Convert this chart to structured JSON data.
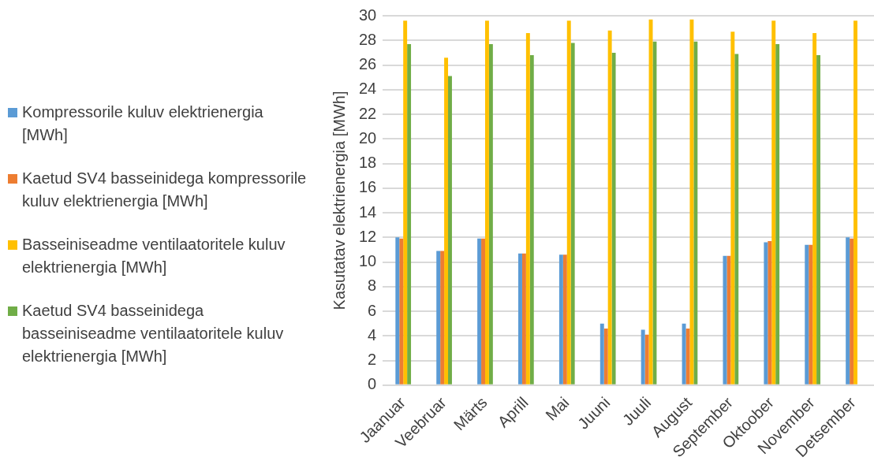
{
  "chart_data": {
    "type": "bar",
    "ylabel": "Kasutatav elektrienergia [MWh]",
    "categories": [
      "Jaanuar",
      "Veebruar",
      "Märts",
      "Aprill",
      "Mai",
      "Juuni",
      "Juuli",
      "August",
      "September",
      "Oktoober",
      "November",
      "Detsember"
    ],
    "series": [
      {
        "name": "Kompressorile kuluv elektrienergia [MWh]",
        "color": "#5b9bd5",
        "values": [
          12.0,
          10.9,
          11.9,
          10.7,
          10.6,
          5.0,
          4.5,
          5.0,
          10.5,
          11.6,
          11.4,
          12.0
        ]
      },
      {
        "name": "Kaetud SV4 basseinidega kompressorile kuluv elektrienergia [MWh]",
        "color": "#ed7d31",
        "values": [
          11.9,
          10.9,
          11.9,
          10.7,
          10.6,
          4.6,
          4.1,
          4.6,
          10.5,
          11.7,
          11.4,
          11.9
        ]
      },
      {
        "name": "Basseiniseadme ventilaatoritele kuluv elektrienergia [MWh]",
        "color": "#ffc000",
        "values": [
          29.6,
          26.6,
          29.6,
          28.6,
          29.6,
          28.8,
          29.7,
          29.7,
          28.7,
          29.6,
          28.6,
          29.6
        ]
      },
      {
        "name": "Kaetud SV4 basseinidega basseiniseadme ventilaatoritele kuluv elektrienergia [MWh]",
        "color": "#70ad47",
        "values": [
          27.7,
          25.1,
          27.7,
          26.8,
          27.8,
          27.0,
          27.9,
          27.9,
          26.9,
          27.7,
          26.8,
          null
        ]
      }
    ],
    "ylim": [
      0,
      30
    ],
    "yticks": [
      0,
      2,
      4,
      6,
      8,
      10,
      12,
      14,
      16,
      18,
      20,
      22,
      24,
      26,
      28,
      30
    ],
    "grid": "y",
    "legend": "left"
  }
}
